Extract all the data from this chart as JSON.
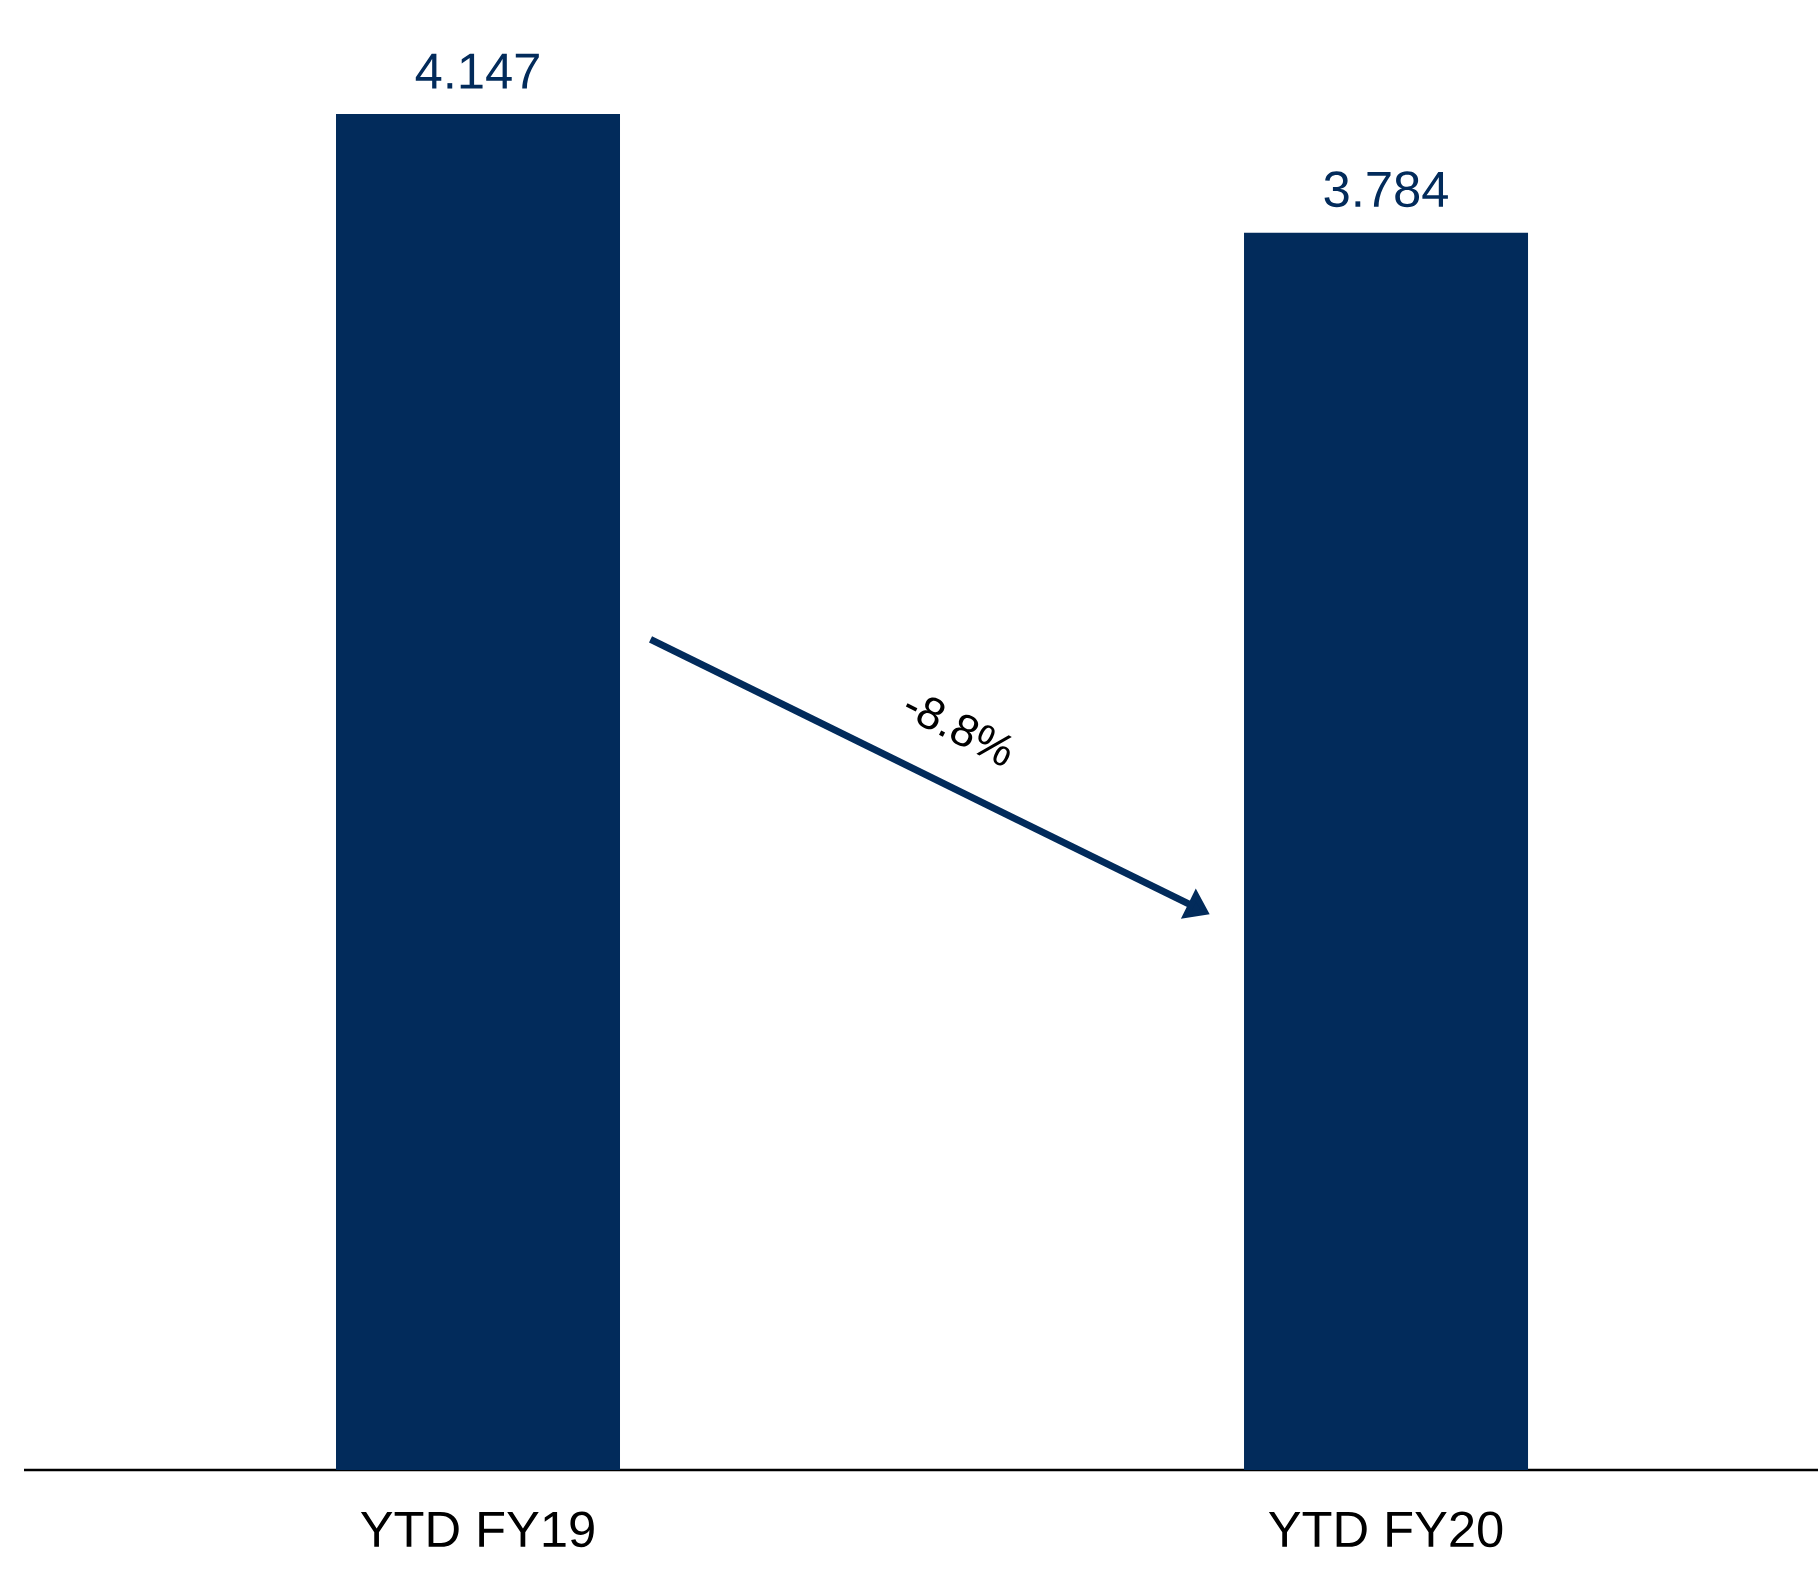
{
  "chart_data": {
    "type": "bar",
    "categories": [
      "YTD FY19",
      "YTD FY20"
    ],
    "values": [
      4.147,
      3.784
    ],
    "color": "#022b5b",
    "data_labels": true,
    "annotations": [
      "-8.8%"
    ]
  }
}
